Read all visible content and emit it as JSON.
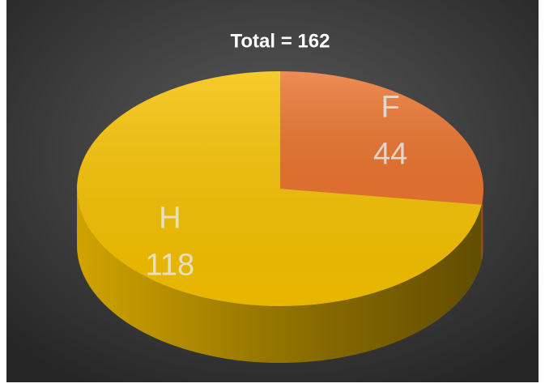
{
  "chart_data": {
    "type": "pie3d",
    "title": "Total = 162",
    "categories": [
      "F",
      "H"
    ],
    "values": [
      44,
      118
    ],
    "colors": [
      "#ea7430",
      "#f5c000"
    ]
  }
}
